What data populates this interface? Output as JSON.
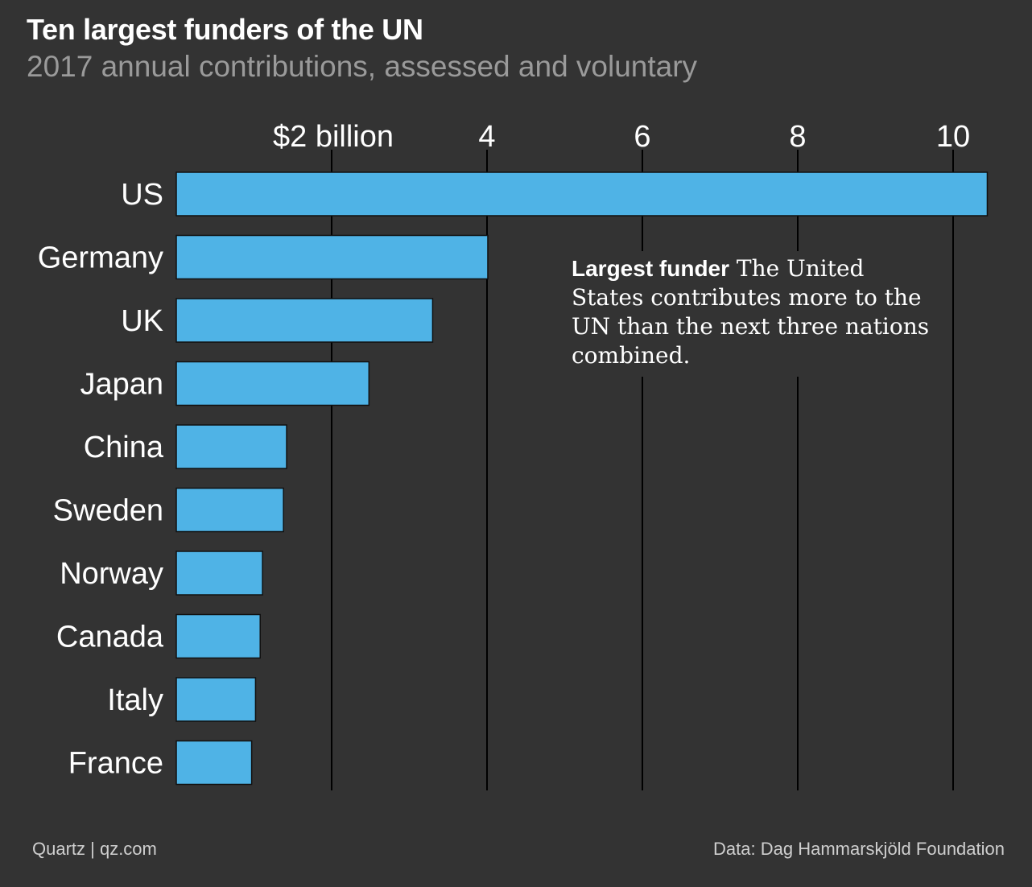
{
  "header": {
    "title": "Ten largest funders of the UN",
    "subtitle": "2017 annual contributions, assessed and voluntary"
  },
  "annotation": {
    "lead": "Largest funder",
    "text": " The United States contributes more to the UN than the next three nations combined."
  },
  "footer": {
    "credit": "Quartz | qz.com",
    "source": "Data: Dag Hammarskjöld Foundation"
  },
  "colors": {
    "background": "#333333",
    "bar": "#4fb3e6",
    "bar_outline": "#111111",
    "gridline": "#000000"
  },
  "chart_data": {
    "type": "bar",
    "orientation": "horizontal",
    "categories": [
      "US",
      "Germany",
      "UK",
      "Japan",
      "China",
      "Sweden",
      "Norway",
      "Canada",
      "Italy",
      "France"
    ],
    "values": [
      10.44,
      4.01,
      3.3,
      2.48,
      1.42,
      1.38,
      1.11,
      1.08,
      1.02,
      0.97
    ],
    "units": "billion USD",
    "xlim": [
      0,
      10.5
    ],
    "xticks": [
      2,
      4,
      6,
      8,
      10
    ],
    "xtick_labels": [
      "$2 billion",
      "4",
      "6",
      "8",
      "10"
    ],
    "axis_position": "top",
    "grid": true
  }
}
